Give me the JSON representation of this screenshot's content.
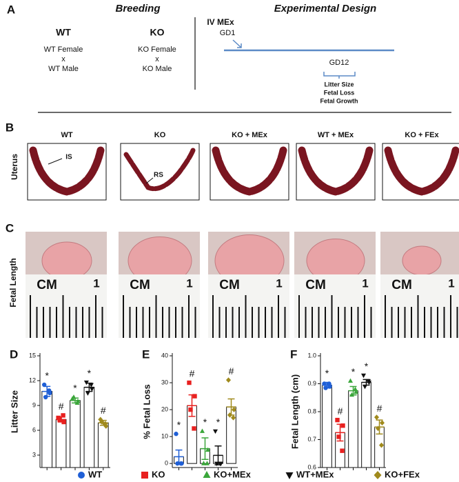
{
  "panel_a": {
    "label": "A",
    "breeding": {
      "title": "Breeding",
      "crosses": [
        {
          "genotype": "WT",
          "female": "WT Female",
          "x": "x",
          "male": "WT Male"
        },
        {
          "genotype": "KO",
          "female": "KO Female",
          "x": "x",
          "male": "KO Male"
        }
      ]
    },
    "design": {
      "title": "Experimental Design",
      "treatment": "IV MEx",
      "start": "GD1",
      "end": "GD12",
      "outcomes": [
        "Litter Size",
        "Fetal Loss",
        "Fetal Growth"
      ]
    }
  },
  "panel_b": {
    "label": "B",
    "row_label": "Uterus",
    "groups": [
      "WT",
      "KO",
      "KO + MEx",
      "WT + MEx",
      "KO + FEx"
    ],
    "annotations": [
      "IS",
      "RS"
    ]
  },
  "panel_c": {
    "label": "C",
    "row_label": "Fetal Length",
    "ruler_unit": "CM",
    "ruler_mark": "1"
  },
  "legend": [
    {
      "name": "WT",
      "color": "#1f5fd6",
      "marker": "circle"
    },
    {
      "name": "KO",
      "color": "#e8201f",
      "marker": "square"
    },
    {
      "name": "KO+MEx",
      "color": "#3aa63a",
      "marker": "triangle"
    },
    {
      "name": "WT+MEx",
      "color": "#111111",
      "marker": "triangle-down"
    },
    {
      "name": "KO+FEx",
      "color": "#a08a1c",
      "marker": "diamond"
    }
  ],
  "chart_data": [
    {
      "type": "bar",
      "panel": "D",
      "ylabel": "Litter Size",
      "categories": [
        null,
        null,
        null,
        null,
        null
      ],
      "values": [
        10.7,
        7.3,
        9.6,
        11.2,
        6.9
      ],
      "errors": [
        0.6,
        0.3,
        0.3,
        0.5,
        0.3
      ],
      "points": [
        [
          11.5,
          10.5,
          10,
          10.8
        ],
        [
          7.5,
          7,
          7.3,
          7.8
        ],
        [
          9.8,
          9.5,
          10,
          9.3
        ],
        [
          11.8,
          11,
          10.5,
          11.5
        ],
        [
          7.3,
          6.5,
          7,
          6.8
        ]
      ],
      "annotations": [
        "*",
        "#",
        "*",
        "*",
        "#"
      ],
      "ylim": [
        1.5,
        15
      ],
      "yticks": [
        3,
        6,
        9,
        12,
        15
      ]
    },
    {
      "type": "bar",
      "panel": "E",
      "ylabel": "% Fetal Loss",
      "categories": [
        null,
        null,
        null,
        null,
        null
      ],
      "values": [
        2.5,
        21.5,
        5.5,
        3,
        21
      ],
      "errors": [
        2.5,
        4,
        4,
        3.5,
        3
      ],
      "points": [
        [
          11,
          0,
          0,
          0
        ],
        [
          30,
          25,
          20,
          13
        ],
        [
          12,
          5,
          0,
          0
        ],
        [
          12,
          0,
          0,
          0
        ],
        [
          31,
          20,
          18,
          17
        ]
      ],
      "annotations": [
        "*",
        "#",
        "*",
        "*",
        "#"
      ],
      "ylim": [
        -1.5,
        40
      ],
      "yticks": [
        0,
        10,
        20,
        30,
        40
      ]
    },
    {
      "type": "bar",
      "panel": "F",
      "ylabel": "Fetal Length (cm)",
      "categories": [
        null,
        null,
        null,
        null,
        null
      ],
      "values": [
        0.895,
        0.725,
        0.875,
        0.905,
        0.745
      ],
      "errors": [
        0.01,
        0.03,
        0.015,
        0.01,
        0.025
      ],
      "points": [
        [
          0.9,
          0.89,
          0.885,
          0.9
        ],
        [
          0.77,
          0.75,
          0.71,
          0.66
        ],
        [
          0.91,
          0.87,
          0.86,
          0.88
        ],
        [
          0.93,
          0.905,
          0.89,
          0.91
        ],
        [
          0.78,
          0.76,
          0.74,
          0.68
        ]
      ],
      "annotations": [
        "*",
        "#",
        "*",
        "*",
        "#"
      ],
      "ylim": [
        0.6,
        1.0
      ],
      "yticks": [
        0.6,
        0.7,
        0.8,
        0.9,
        {
          "value": 1.0,
          "label": "1.0"
        }
      ]
    }
  ]
}
